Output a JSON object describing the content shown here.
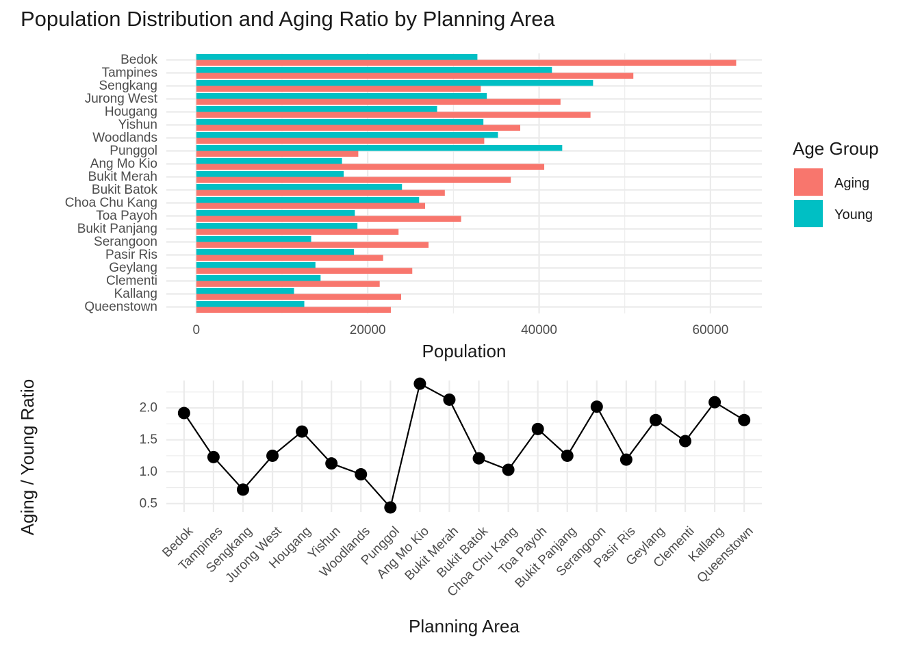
{
  "title": "Population Distribution and Aging Ratio by Planning Area",
  "colors": {
    "aging": "#F8766D",
    "young": "#00BFC4",
    "line": "#000000",
    "grid": "#EBEBEB"
  },
  "chart_data": [
    {
      "type": "bar",
      "orientation": "horizontal",
      "categories": [
        "Bedok",
        "Tampines",
        "Sengkang",
        "Jurong West",
        "Hougang",
        "Yishun",
        "Woodlands",
        "Punggol",
        "Ang Mo Kio",
        "Bukit Merah",
        "Bukit Batok",
        "Choa Chu Kang",
        "Toa Payoh",
        "Bukit Panjang",
        "Serangoon",
        "Pasir Ris",
        "Geylang",
        "Clementi",
        "Kallang",
        "Queenstown"
      ],
      "series": [
        {
          "name": "Aging",
          "values": [
            63000,
            51000,
            33200,
            42500,
            46000,
            37800,
            33600,
            18900,
            40600,
            36700,
            29000,
            26700,
            30900,
            23600,
            27100,
            21800,
            25200,
            21400,
            23900,
            22700
          ]
        },
        {
          "name": "Young",
          "values": [
            32800,
            41500,
            46300,
            33900,
            28100,
            33500,
            35200,
            42700,
            17000,
            17200,
            24000,
            26000,
            18500,
            18800,
            13400,
            18400,
            13900,
            14500,
            11400,
            12600
          ]
        }
      ],
      "xlabel": "Population",
      "ylabel": "",
      "xlim": [
        -3500,
        66000
      ],
      "xticks": [
        0,
        20000,
        40000,
        60000
      ],
      "grid": true,
      "legend": {
        "title": "Age Group",
        "position": "right"
      }
    },
    {
      "type": "line",
      "categories": [
        "Bedok",
        "Tampines",
        "Sengkang",
        "Jurong West",
        "Hougang",
        "Yishun",
        "Woodlands",
        "Punggol",
        "Ang Mo Kio",
        "Bukit Merah",
        "Bukit Batok",
        "Choa Chu Kang",
        "Toa Payoh",
        "Bukit Panjang",
        "Serangoon",
        "Pasir Ris",
        "Geylang",
        "Clementi",
        "Kallang",
        "Queenstown"
      ],
      "values": [
        1.92,
        1.23,
        0.72,
        1.25,
        1.63,
        1.13,
        0.96,
        0.44,
        2.38,
        2.13,
        1.21,
        1.03,
        1.67,
        1.25,
        2.02,
        1.19,
        1.81,
        1.48,
        2.09,
        1.81
      ],
      "xlabel": "Planning Area",
      "ylabel": "Aging / Young Ratio",
      "ylim": [
        0.37,
        2.43
      ],
      "yticks": [
        0.5,
        1.0,
        1.5,
        2.0
      ],
      "ytick_labels": [
        "0.5",
        "1.0",
        "1.5",
        "2.0"
      ],
      "grid": true,
      "markers": true
    }
  ]
}
